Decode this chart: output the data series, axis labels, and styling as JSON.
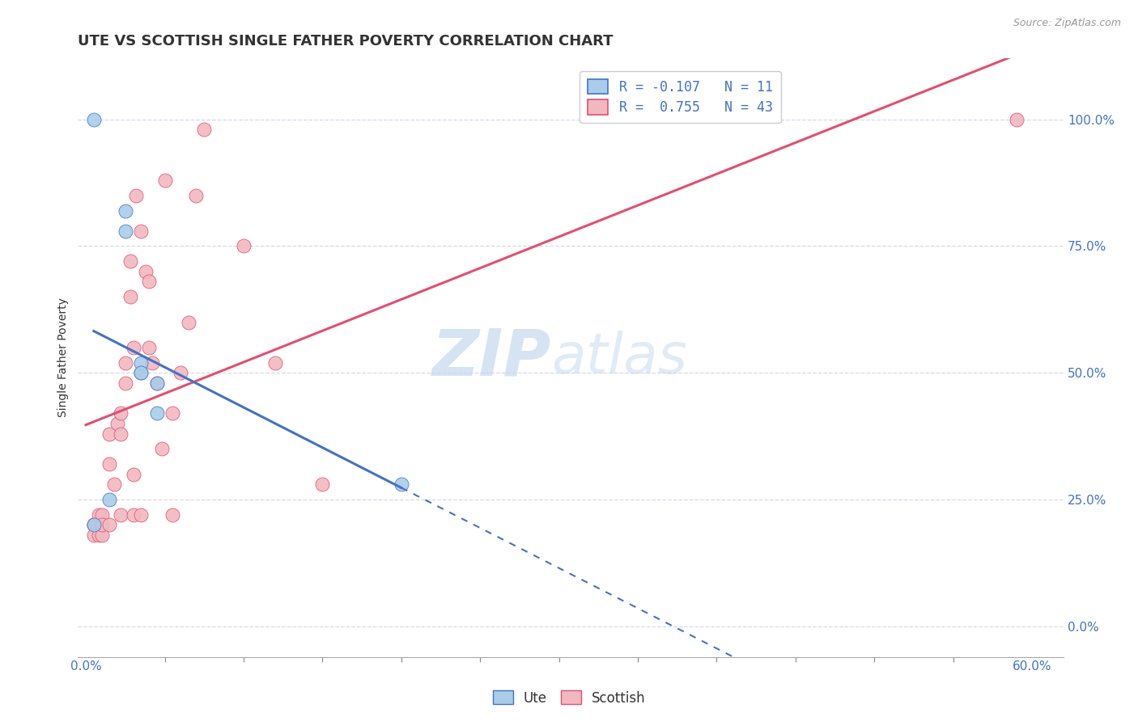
{
  "title": "UTE VS SCOTTISH SINGLE FATHER POVERTY CORRELATION CHART",
  "source": "Source: ZipAtlas.com",
  "ylabel": "Single Father Poverty",
  "ytick_vals": [
    0.0,
    0.25,
    0.5,
    0.75,
    1.0
  ],
  "ytick_labels": [
    "0.0%",
    "25.0%",
    "50.0%",
    "75.0%",
    "100.0%"
  ],
  "legend_ute_R": -0.107,
  "legend_ute_N": 11,
  "legend_scot_R": 0.755,
  "legend_scot_N": 43,
  "ute_color": "#AACCE8",
  "scottish_color": "#F2B8C0",
  "ute_edge_color": "#4472C4",
  "scot_edge_color": "#E05070",
  "ute_line_color": "#4472C4",
  "scottish_line_color": "#E05070",
  "background_color": "#FFFFFF",
  "grid_color": "#D8D8E8",
  "watermark_color": "#C5D8EE",
  "ute_x": [
    0.005,
    0.015,
    0.025,
    0.025,
    0.035,
    0.035,
    0.035,
    0.045,
    0.045,
    0.2,
    0.005
  ],
  "ute_y": [
    0.2,
    0.25,
    0.78,
    0.82,
    0.5,
    0.52,
    0.5,
    0.42,
    0.48,
    0.28,
    1.0
  ],
  "scottish_x": [
    0.005,
    0.005,
    0.005,
    0.008,
    0.008,
    0.01,
    0.01,
    0.01,
    0.015,
    0.015,
    0.015,
    0.018,
    0.02,
    0.022,
    0.022,
    0.022,
    0.025,
    0.025,
    0.028,
    0.028,
    0.03,
    0.03,
    0.03,
    0.032,
    0.035,
    0.035,
    0.038,
    0.04,
    0.04,
    0.042,
    0.045,
    0.048,
    0.05,
    0.055,
    0.055,
    0.06,
    0.065,
    0.07,
    0.075,
    0.1,
    0.12,
    0.15,
    0.59
  ],
  "scottish_y": [
    0.2,
    0.2,
    0.18,
    0.22,
    0.18,
    0.22,
    0.18,
    0.2,
    0.32,
    0.38,
    0.2,
    0.28,
    0.4,
    0.42,
    0.38,
    0.22,
    0.48,
    0.52,
    0.65,
    0.72,
    0.55,
    0.3,
    0.22,
    0.85,
    0.78,
    0.22,
    0.7,
    0.68,
    0.55,
    0.52,
    0.48,
    0.35,
    0.88,
    0.42,
    0.22,
    0.5,
    0.6,
    0.85,
    0.98,
    0.75,
    0.52,
    0.28,
    1.0
  ],
  "xlim": [
    -0.005,
    0.62
  ],
  "ylim": [
    -0.06,
    1.12
  ],
  "x_minor_ticks": [
    0.0,
    0.05,
    0.1,
    0.15,
    0.2,
    0.25,
    0.3,
    0.35,
    0.4,
    0.45,
    0.5,
    0.55,
    0.6
  ],
  "title_fontsize": 13,
  "label_fontsize": 10,
  "tick_fontsize": 11,
  "legend_fontsize": 12
}
